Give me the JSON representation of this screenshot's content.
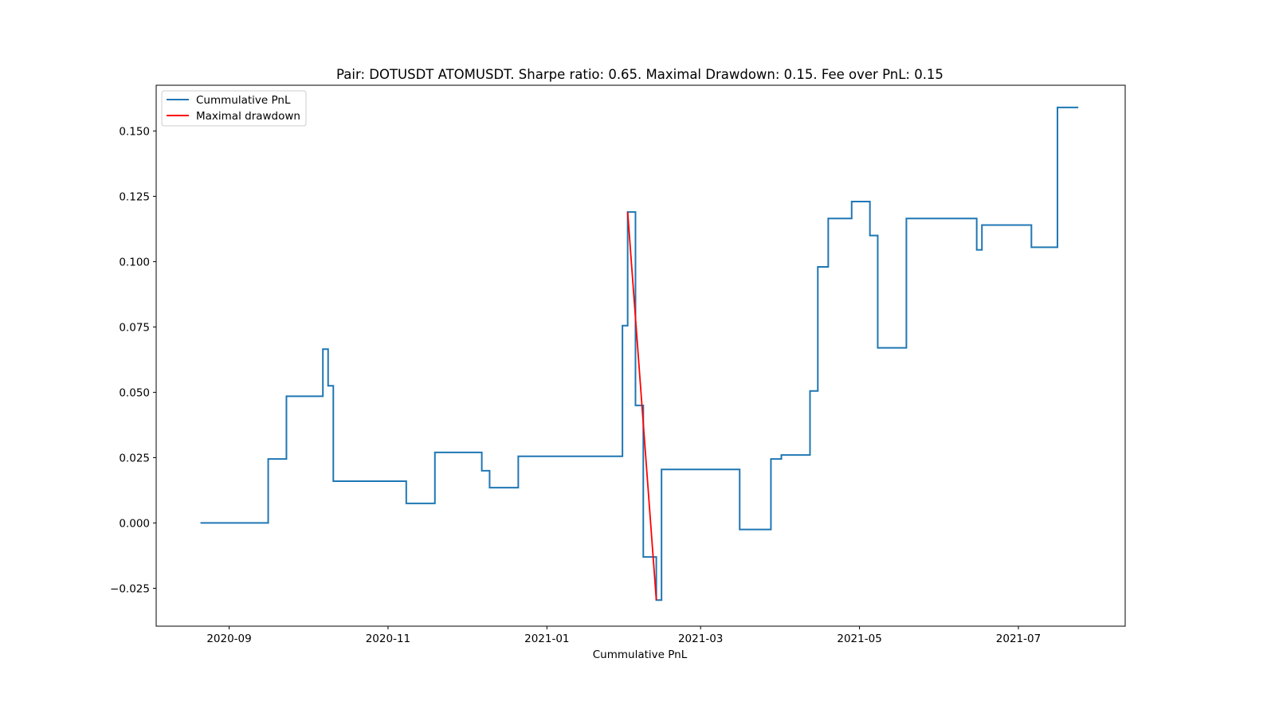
{
  "chart_data": {
    "type": "line",
    "title": "Pair: DOTUSDT ATOMUSDT. Sharpe ratio: 0.65. Maximal Drawdown: 0.15. Fee over PnL: 0.15",
    "xlabel": "Cummulative PnL",
    "ylabel": "",
    "xlim": [
      "2020-08-04",
      "2021-08-11"
    ],
    "ylim": [
      -0.0395,
      0.1675
    ],
    "grid": false,
    "legend_position": "top-left",
    "x_ticks": [
      {
        "date": "2020-09-01",
        "label": "2020-09"
      },
      {
        "date": "2020-11-01",
        "label": "2020-11"
      },
      {
        "date": "2021-01-01",
        "label": "2021-01"
      },
      {
        "date": "2021-03-01",
        "label": "2021-03"
      },
      {
        "date": "2021-05-01",
        "label": "2021-05"
      },
      {
        "date": "2021-07-01",
        "label": "2021-07"
      }
    ],
    "y_ticks": [
      {
        "value": -0.025,
        "label": "−0.025"
      },
      {
        "value": 0.0,
        "label": "0.000"
      },
      {
        "value": 0.025,
        "label": "0.025"
      },
      {
        "value": 0.05,
        "label": "0.050"
      },
      {
        "value": 0.075,
        "label": "0.075"
      },
      {
        "value": 0.1,
        "label": "0.100"
      },
      {
        "value": 0.125,
        "label": "0.125"
      },
      {
        "value": 0.15,
        "label": "0.150"
      }
    ],
    "series": [
      {
        "name": "Cummulative PnL",
        "color": "#1f77b4",
        "step": true,
        "points": [
          [
            "2020-08-21",
            0.0
          ],
          [
            "2020-09-16",
            0.0245
          ],
          [
            "2020-09-23",
            0.0485
          ],
          [
            "2020-10-07",
            0.0665
          ],
          [
            "2020-10-09",
            0.0525
          ],
          [
            "2020-10-11",
            0.016
          ],
          [
            "2020-11-08",
            0.0075
          ],
          [
            "2020-11-19",
            0.027
          ],
          [
            "2020-12-07",
            0.02
          ],
          [
            "2020-12-10",
            0.0135
          ],
          [
            "2020-12-21",
            0.0255
          ],
          [
            "2021-01-30",
            0.0755
          ],
          [
            "2021-02-01",
            0.119
          ],
          [
            "2021-02-04",
            0.045
          ],
          [
            "2021-02-07",
            -0.013
          ],
          [
            "2021-02-12",
            -0.0295
          ],
          [
            "2021-02-14",
            0.0205
          ],
          [
            "2021-03-16",
            -0.0025
          ],
          [
            "2021-03-28",
            0.0245
          ],
          [
            "2021-04-01",
            0.026
          ],
          [
            "2021-04-12",
            0.0505
          ],
          [
            "2021-04-15",
            0.098
          ],
          [
            "2021-04-19",
            0.1165
          ],
          [
            "2021-04-28",
            0.123
          ],
          [
            "2021-05-05",
            0.11
          ],
          [
            "2021-05-08",
            0.067
          ],
          [
            "2021-05-19",
            0.1165
          ],
          [
            "2021-06-15",
            0.1045
          ],
          [
            "2021-06-17",
            0.114
          ],
          [
            "2021-07-06",
            0.1055
          ],
          [
            "2021-07-16",
            0.159
          ],
          [
            "2021-07-24",
            0.159
          ]
        ]
      },
      {
        "name": "Maximal drawdown",
        "color": "#ff0000",
        "step": false,
        "points": [
          [
            "2021-02-01",
            0.119
          ],
          [
            "2021-02-12",
            -0.0295
          ]
        ]
      }
    ]
  }
}
